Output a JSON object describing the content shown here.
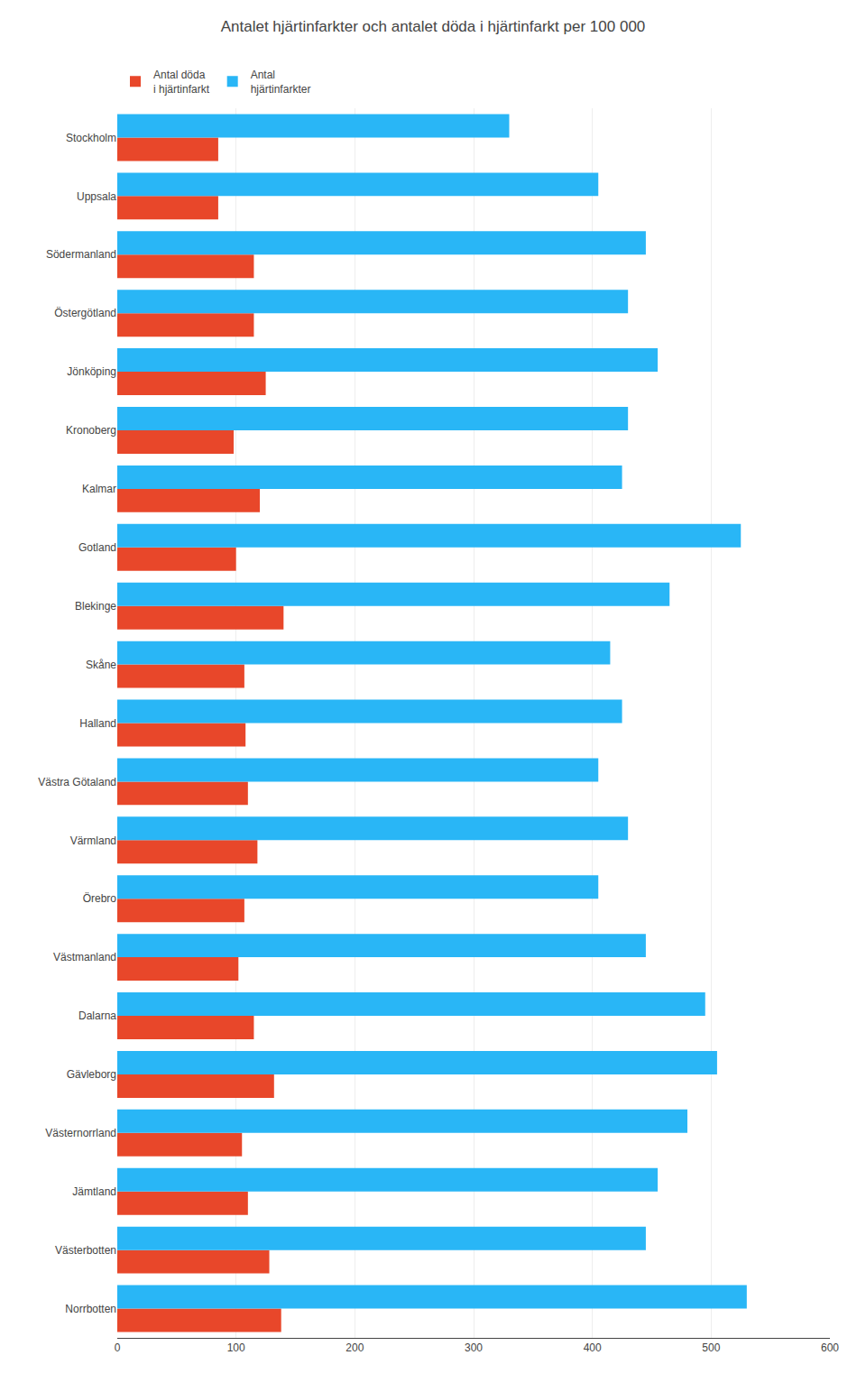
{
  "chart_data": {
    "type": "bar",
    "orientation": "horizontal",
    "title": "Antalet hjärtinfarkter och antalet döda i hjärtinfarkt per 100 000",
    "categories": [
      "Norrbotten",
      "Västerbotten",
      "Jämtland",
      "Västernorrland",
      "Gävleborg",
      "Dalarna",
      "Västmanland",
      "Örebro",
      "Värmland",
      "Västra Götaland",
      "Halland",
      "Skåne",
      "Blekinge",
      "Gotland",
      "Kalmar",
      "Kronoberg",
      "Jönköping",
      "Östergötland",
      "Södermanland",
      "Uppsala",
      "Stockholm"
    ],
    "series": [
      {
        "name": "Antal döda\ni hjärtinfarkt",
        "color": "#e8472a",
        "values": [
          138,
          128,
          110,
          105,
          132,
          115,
          102,
          107,
          118,
          110,
          108,
          107,
          140,
          100,
          120,
          98,
          125,
          115,
          115,
          85,
          85
        ]
      },
      {
        "name": "Antal\nhjärtinfarkter",
        "color": "#29b6f6",
        "values": [
          530,
          445,
          455,
          480,
          505,
          495,
          445,
          405,
          430,
          405,
          425,
          415,
          465,
          525,
          425,
          430,
          455,
          430,
          445,
          405,
          330
        ]
      }
    ],
    "xlim": [
      0,
      600
    ],
    "xticks": [
      0,
      100,
      200,
      300,
      400,
      500,
      600
    ],
    "grid": true,
    "legend": "top"
  }
}
